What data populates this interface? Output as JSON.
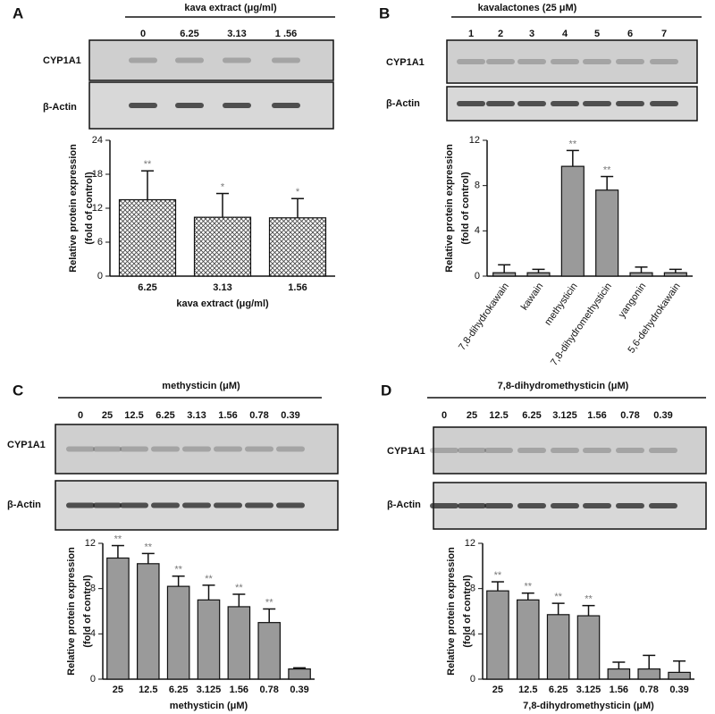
{
  "chart_data": [
    {
      "type": "bar",
      "panel": "A",
      "blot_title": "kava extract (μg/ml)",
      "lanes": [
        "0",
        "6.25",
        "3.13",
        "1 .56"
      ],
      "blot_rows": [
        "CYP1A1",
        "β-Actin"
      ],
      "ylabel": [
        "Relative protein expression",
        "(fold of control)"
      ],
      "xlabel": "kava extract (μg/ml)",
      "categories": [
        "6.25",
        "3.13",
        "1.56"
      ],
      "values": [
        13.5,
        10.4,
        10.3
      ],
      "errors": [
        5.1,
        4.2,
        3.4
      ],
      "annotations": [
        "**",
        "*",
        "*"
      ],
      "ylim": [
        0,
        24
      ],
      "yticks": [
        0,
        6,
        12,
        18,
        24
      ],
      "color": "#ffffff",
      "hatch": true
    },
    {
      "type": "bar",
      "panel": "B",
      "blot_title": "kavalactones (25 μM)",
      "lanes": [
        "1",
        "2",
        "3",
        "4",
        "5",
        "6",
        "7"
      ],
      "blot_rows": [
        "CYP1A1",
        "β-Actin"
      ],
      "ylabel": [
        "Relative protein expression",
        "(fold of control)"
      ],
      "categories": [
        "7,8-dihydrokawain",
        "kawain",
        "methysticin",
        "7,8-dihydromethysticin",
        "yangonin",
        "5,6-dehydrokawain"
      ],
      "values": [
        0.3,
        0.3,
        9.7,
        7.6,
        0.3,
        0.3
      ],
      "errors": [
        0.7,
        0.3,
        1.4,
        1.2,
        0.5,
        0.3
      ],
      "annotations": [
        null,
        null,
        "**",
        "**",
        null,
        null
      ],
      "ylim": [
        0,
        12
      ],
      "yticks": [
        0,
        4,
        8,
        12
      ],
      "color": "#9a9a9a",
      "hatch": false
    },
    {
      "type": "bar",
      "panel": "C",
      "blot_title": "methysticin (μM)",
      "lanes": [
        "0",
        "25",
        "12.5",
        "6.25",
        "3.13",
        "1.56",
        "0.78",
        "0.39"
      ],
      "blot_rows": [
        "CYP1A1",
        "β-Actin"
      ],
      "ylabel": [
        "Relative protein expression",
        "(fold of control)"
      ],
      "xlabel": "methysticin (μM)",
      "categories": [
        "25",
        "12.5",
        "6.25",
        "3.125",
        "1.56",
        "0.78",
        "0.39"
      ],
      "values": [
        10.7,
        10.2,
        8.2,
        7.0,
        6.4,
        5.0,
        0.9
      ],
      "errors": [
        1.1,
        0.9,
        0.9,
        1.3,
        1.1,
        1.2,
        0.1
      ],
      "annotations": [
        "**",
        "**",
        "**",
        "**",
        "**",
        "**",
        null
      ],
      "ylim": [
        0,
        12
      ],
      "yticks": [
        0,
        4,
        8,
        12
      ],
      "color": "#9a9a9a",
      "hatch": false
    },
    {
      "type": "bar",
      "panel": "D",
      "blot_title": "7,8-dihydromethysticin (μM)",
      "lanes": [
        "0",
        "25",
        "12.5",
        "6.25",
        "3.125",
        "1.56",
        "0.78",
        "0.39"
      ],
      "blot_rows": [
        "CYP1A1",
        "β-Actin"
      ],
      "ylabel": [
        "Relative protein expression",
        "(fold of control)"
      ],
      "xlabel": "7,8-dihydromethysticin (μM)",
      "categories": [
        "25",
        "12.5",
        "6.25",
        "3.125",
        "1.56",
        "0.78",
        "0.39"
      ],
      "values": [
        7.8,
        7.0,
        5.7,
        5.6,
        0.9,
        0.9,
        0.6
      ],
      "errors": [
        0.8,
        0.6,
        1.0,
        0.9,
        0.6,
        1.2,
        1.0
      ],
      "annotations": [
        "**",
        "**",
        "**",
        "**",
        null,
        null,
        null
      ],
      "ylim": [
        0,
        12
      ],
      "yticks": [
        0,
        4,
        8,
        12
      ],
      "color": "#9a9a9a",
      "hatch": false
    }
  ]
}
